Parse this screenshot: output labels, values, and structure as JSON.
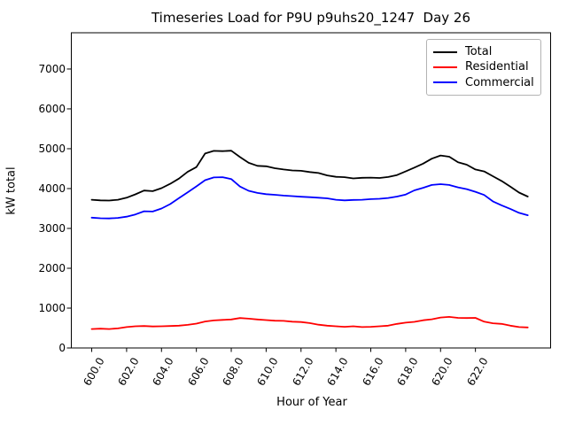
{
  "title": "Timeseries Load for P9U p9uhs20_1247  Day 26",
  "chart_data": {
    "type": "line",
    "title": "Timeseries Load for P9U p9uhs20_1247  Day 26",
    "xlabel": "Hour of Year",
    "ylabel": "kW total",
    "xlim": [
      598.83,
      626.31
    ],
    "ylim": [
      0,
      7910
    ],
    "grid": false,
    "x_ticks": [
      600.0,
      602.0,
      604.0,
      606.0,
      608.0,
      610.0,
      612.0,
      614.0,
      616.0,
      618.0,
      620.0,
      622.0
    ],
    "x_tick_labels": [
      "600.0",
      "602.0",
      "604.0",
      "606.0",
      "608.0",
      "610.0",
      "612.0",
      "614.0",
      "616.0",
      "618.0",
      "620.0",
      "622.0"
    ],
    "x_tick_rotation_deg": 60,
    "y_ticks": [
      0,
      1000,
      2000,
      3000,
      4000,
      5000,
      6000,
      7000
    ],
    "y_tick_labels": [
      "0",
      "1000",
      "2000",
      "3000",
      "4000",
      "5000",
      "6000",
      "7000"
    ],
    "legend": {
      "position": "upper right",
      "entries": [
        "Total",
        "Residential",
        "Commercial"
      ]
    },
    "x": [
      600.0,
      600.5,
      601.0,
      601.5,
      602.0,
      602.5,
      603.0,
      603.5,
      604.0,
      604.5,
      605.0,
      605.5,
      606.0,
      606.5,
      607.0,
      607.5,
      608.0,
      608.5,
      609.0,
      609.5,
      610.0,
      610.5,
      611.0,
      611.5,
      612.0,
      612.5,
      613.0,
      613.5,
      614.0,
      614.5,
      615.0,
      615.5,
      616.0,
      616.5,
      617.0,
      617.5,
      618.0,
      618.5,
      619.0,
      619.5,
      620.0,
      620.5,
      621.0,
      621.5,
      622.0,
      622.5,
      623.0,
      623.5,
      624.0,
      624.5,
      625.0
    ],
    "series": [
      {
        "name": "Total",
        "color": "#000000",
        "values": [
          3720,
          3705,
          3700,
          3720,
          3770,
          3855,
          3950,
          3935,
          4010,
          4120,
          4250,
          4420,
          4540,
          4880,
          4945,
          4940,
          4950,
          4790,
          4645,
          4570,
          4560,
          4510,
          4480,
          4455,
          4445,
          4415,
          4390,
          4330,
          4295,
          4285,
          4255,
          4270,
          4275,
          4265,
          4290,
          4340,
          4430,
          4525,
          4625,
          4750,
          4830,
          4800,
          4660,
          4600,
          4480,
          4430,
          4310,
          4190,
          4050,
          3900,
          3800
        ]
      },
      {
        "name": "Residential",
        "color": "#ff0000",
        "values": [
          475,
          485,
          475,
          490,
          525,
          545,
          550,
          540,
          545,
          550,
          560,
          580,
          610,
          665,
          690,
          705,
          715,
          750,
          735,
          715,
          700,
          685,
          680,
          660,
          650,
          625,
          585,
          560,
          545,
          530,
          545,
          525,
          530,
          545,
          560,
          605,
          635,
          655,
          695,
          720,
          765,
          780,
          755,
          750,
          755,
          660,
          620,
          605,
          560,
          525,
          515
        ]
      },
      {
        "name": "Commercial",
        "color": "#0000ff",
        "values": [
          3270,
          3255,
          3250,
          3265,
          3295,
          3350,
          3430,
          3425,
          3500,
          3610,
          3760,
          3905,
          4055,
          4210,
          4280,
          4285,
          4240,
          4050,
          3945,
          3890,
          3860,
          3845,
          3825,
          3810,
          3795,
          3785,
          3770,
          3755,
          3720,
          3705,
          3715,
          3720,
          3735,
          3745,
          3765,
          3800,
          3850,
          3955,
          4020,
          4090,
          4110,
          4090,
          4030,
          3985,
          3920,
          3840,
          3680,
          3580,
          3490,
          3390,
          3330
        ]
      }
    ]
  }
}
